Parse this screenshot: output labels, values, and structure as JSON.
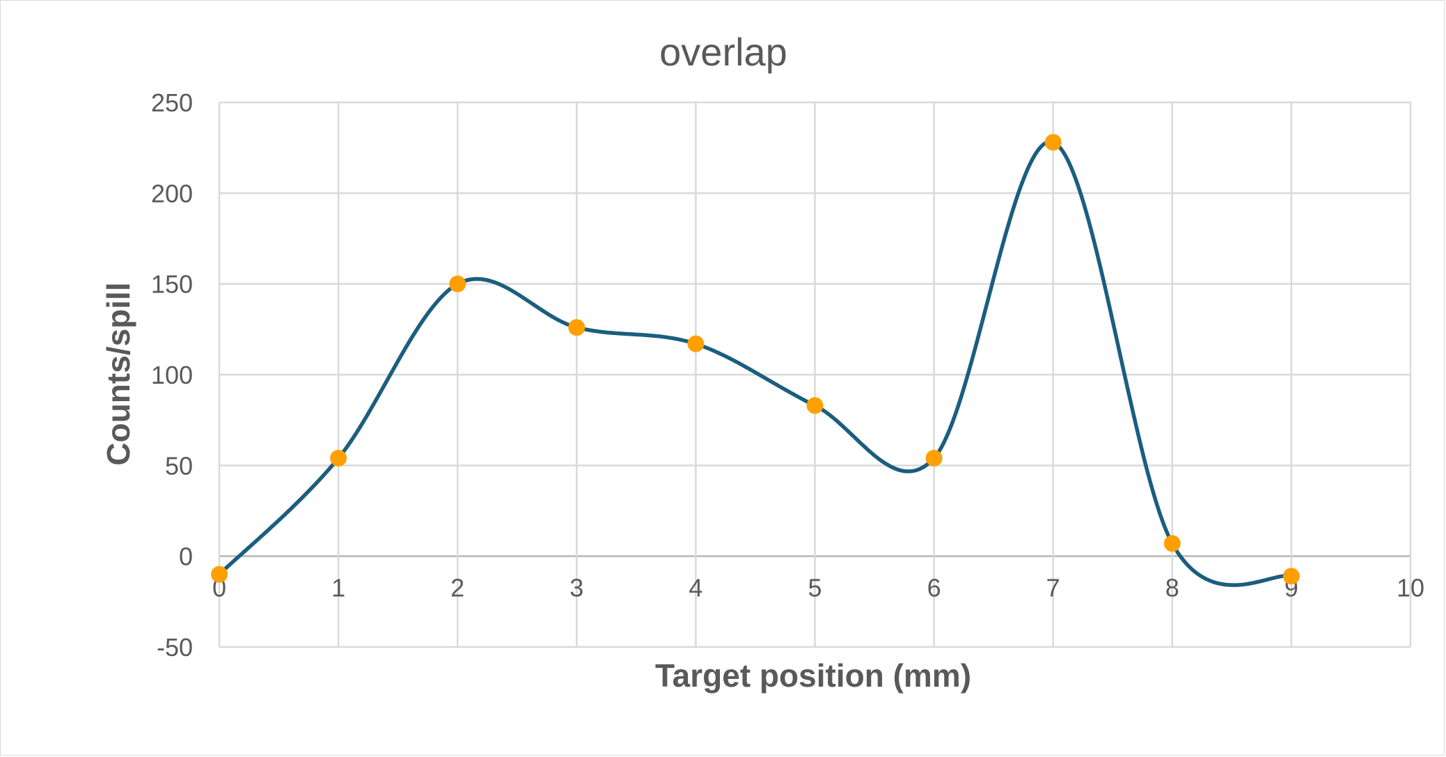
{
  "chart_data": {
    "type": "scatter",
    "title": "overlap",
    "xlabel": "Target position (mm)",
    "ylabel": "Counts/spill",
    "xlim": [
      0,
      10
    ],
    "ylim": [
      -50,
      250
    ],
    "x_ticks": [
      "0",
      "1",
      "2",
      "3",
      "4",
      "5",
      "6",
      "7",
      "8",
      "9",
      "10"
    ],
    "y_ticks": [
      "250",
      "200",
      "150",
      "100",
      "50",
      "0",
      "-50"
    ],
    "grid": true,
    "legend": "none",
    "smoothed_line": true,
    "series": [
      {
        "x": [
          0,
          1,
          2,
          3,
          4,
          5,
          6,
          7,
          8,
          9
        ],
        "y": [
          -10,
          54,
          150,
          126,
          117,
          83,
          54,
          228,
          7,
          -11
        ],
        "line_color": "#1b5e7e",
        "marker_color": "#ffa000"
      }
    ]
  }
}
